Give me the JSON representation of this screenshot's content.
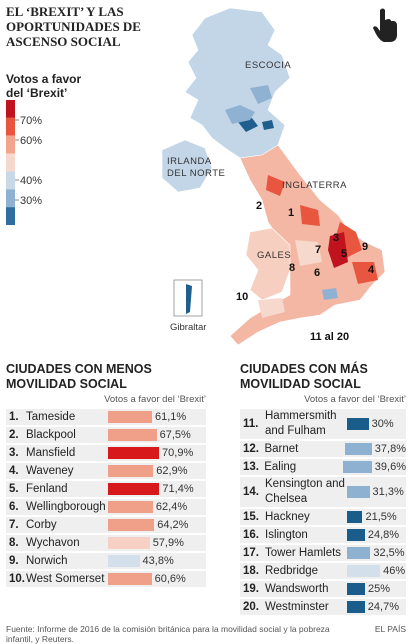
{
  "title": "El ‘Brexit’ y las oportunidades de ascenso social",
  "legend": {
    "title": "Votos a favor del ‘Brexit’",
    "ticks": [
      {
        "value": 70,
        "label": "70%"
      },
      {
        "value": 60,
        "label": "60%"
      },
      {
        "value": 40,
        "label": "40%"
      },
      {
        "value": 30,
        "label": "30%"
      }
    ],
    "colors": [
      "#c1121f",
      "#e8563f",
      "#f2a58c",
      "#f7d8cc",
      "#c9d9e8",
      "#8fb2d2",
      "#2f6e9e"
    ]
  },
  "map": {
    "regions": [
      "ESCOCIA",
      "IRLANDA DEL NORTE",
      "INGLATERRA",
      "GALES"
    ],
    "inset": "Gibraltar",
    "markers": [
      "1",
      "2",
      "3",
      "4",
      "5",
      "6",
      "7",
      "8",
      "9",
      "10",
      "11 al 20"
    ]
  },
  "chart_data": [
    {
      "type": "bar",
      "title": "Ciudades con menos movilidad social",
      "subtitle": "Votos a favor del ‘Brexit’",
      "ranks": [
        "1.",
        "2.",
        "3.",
        "4.",
        "5.",
        "6.",
        "7.",
        "8.",
        "9.",
        "10."
      ],
      "categories": [
        "Tameside",
        "Blackpool",
        "Mansfield",
        "Waveney",
        "Fenland",
        "Wellingborough",
        "Corby",
        "Wychavon",
        "Norwich",
        "West Somerset"
      ],
      "values": [
        61.1,
        67.5,
        70.9,
        62.9,
        71.4,
        62.4,
        64.2,
        57.9,
        43.8,
        60.6
      ],
      "value_labels": [
        "61,1%",
        "67,5%",
        "70,9%",
        "62,9%",
        "71,4%",
        "62,4%",
        "64,2%",
        "57,9%",
        "43,8%",
        "60,6%"
      ],
      "colors": [
        "#f0a088",
        "#f0a088",
        "#d7191c",
        "#f0a088",
        "#d7191c",
        "#f0a088",
        "#f0a088",
        "#f6d0c4",
        "#d3e0ec",
        "#f0a088"
      ]
    },
    {
      "type": "bar",
      "title": "Ciudades con más movilidad social",
      "subtitle": "Votos a favor del ‘Brexit’",
      "ranks": [
        "11.",
        "12.",
        "13.",
        "14.",
        "15.",
        "16.",
        "17.",
        "18.",
        "19.",
        "20."
      ],
      "categories": [
        "Hammersmith and Fulham",
        "Barnet",
        "Ealing",
        "Kensington and Chelsea",
        "Hackney",
        "Islington",
        "Tower Hamlets",
        "Redbridge",
        "Wandsworth",
        "Westminster"
      ],
      "values": [
        30,
        37.8,
        39.6,
        31.3,
        21.5,
        24.8,
        32.5,
        46,
        25,
        24.7
      ],
      "value_labels": [
        "30%",
        "37,8%",
        "39,6%",
        "31,3%",
        "21,5%",
        "24,8%",
        "32,5%",
        "46%",
        "25%",
        "24,7%"
      ],
      "colors": [
        "#1a5c8a",
        "#8eb1d1",
        "#8eb1d1",
        "#8eb1d1",
        "#1a5c8a",
        "#1a5c8a",
        "#8eb1d1",
        "#d3e0ec",
        "#1a5c8a",
        "#1a5c8a"
      ]
    }
  ],
  "source": "Fuente: Informe de 2016 de la comisión británica para la movilidad social y la pobreza infantil, y Reuters.",
  "brand": "EL PAÍS"
}
